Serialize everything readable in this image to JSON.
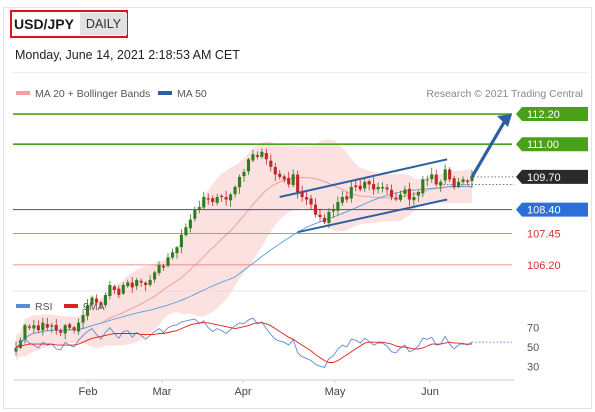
{
  "header": {
    "pair": "USD/JPY",
    "period": "DAILY"
  },
  "timestamp": "Monday, June 14, 2021 2:18:53 AM CET",
  "legend": {
    "bollinger": "MA 20 + Bollinger Bands",
    "ma50": "MA 50",
    "rsi": "RSI",
    "rsi_ma": "9MA"
  },
  "copyright": "Research © 2021 Trading Central",
  "colors": {
    "up_candle": "#2e7d1e",
    "down_candle": "#c0262a",
    "bands": "#f9c9c9",
    "ma20": "#f0a0a0",
    "ma50": "#5aa0d8",
    "resistance": "#49a019",
    "support_blue": "#2d6fd6",
    "support_red": "#f07070",
    "current_price": "#2a2a2a",
    "trend_arrow": "#2e5fa3",
    "rsi": "#5b8bd9",
    "rsi_ma": "#e02020"
  },
  "chart_data": [
    {
      "type": "candlestick",
      "title": "USD/JPY daily",
      "x_ticks": [
        "Feb",
        "Mar",
        "Apr",
        "May",
        "Jun"
      ],
      "y_range": [
        105.2,
        112.6
      ],
      "levels": [
        {
          "value": 112.2,
          "label": "112.20",
          "kind": "resistance"
        },
        {
          "value": 111.0,
          "label": "111.00",
          "kind": "resistance"
        },
        {
          "value": 109.7,
          "label": "109.70",
          "kind": "current"
        },
        {
          "value": 108.4,
          "label": "108.40",
          "kind": "support"
        },
        {
          "value": 107.45,
          "label": "107.45",
          "kind": "support_minor"
        },
        {
          "value": 106.2,
          "label": "106.20",
          "kind": "support_minor"
        }
      ],
      "closes": [
        102.9,
        103.2,
        103.8,
        103.7,
        103.8,
        103.6,
        103.9,
        103.7,
        103.8,
        103.6,
        103.5,
        103.8,
        103.7,
        103.6,
        103.9,
        104.2,
        104.6,
        104.9,
        104.7,
        104.6,
        105.0,
        105.4,
        105.2,
        105.0,
        105.4,
        105.5,
        105.3,
        105.6,
        105.5,
        105.4,
        105.6,
        105.9,
        106.2,
        106.1,
        106.5,
        106.7,
        106.9,
        107.4,
        107.7,
        108.0,
        108.4,
        108.5,
        108.9,
        108.8,
        108.7,
        108.9,
        108.9,
        108.8,
        109.0,
        109.3,
        109.7,
        109.9,
        110.4,
        110.6,
        110.5,
        110.7,
        110.4,
        110.1,
        109.8,
        109.7,
        109.6,
        109.4,
        109.8,
        109.1,
        108.9,
        108.8,
        108.6,
        108.2,
        108.1,
        107.9,
        108.3,
        108.4,
        108.7,
        108.9,
        108.8,
        109.3,
        109.3,
        109.2,
        109.5,
        109.4,
        109.2,
        109.3,
        109.3,
        109.2,
        108.9,
        108.8,
        109.0,
        109.2,
        108.8,
        108.9,
        109.1,
        109.6,
        109.6,
        109.8,
        109.4,
        109.5,
        110.0,
        109.6,
        109.3,
        109.5,
        109.6,
        109.5,
        109.7
      ],
      "channel": {
        "upper": [
          108.9,
          110.4
        ],
        "lower": [
          107.5,
          108.8
        ]
      }
    },
    {
      "type": "line",
      "title": "RSI",
      "y_ticks": [
        70,
        50,
        30
      ],
      "series": [
        {
          "name": "RSI",
          "values": [
            47,
            55,
            58,
            54,
            52,
            49,
            55,
            52,
            53,
            48,
            47,
            55,
            52,
            50,
            57,
            62,
            66,
            69,
            63,
            58,
            65,
            70,
            64,
            59,
            66,
            67,
            60,
            65,
            62,
            58,
            62,
            66,
            69,
            65,
            70,
            72,
            73,
            76,
            77,
            78,
            79,
            74,
            77,
            70,
            66,
            69,
            67,
            64,
            68,
            72,
            75,
            74,
            78,
            80,
            74,
            76,
            69,
            63,
            58,
            56,
            55,
            52,
            58,
            44,
            40,
            38,
            36,
            32,
            30,
            29,
            38,
            41,
            48,
            52,
            50,
            58,
            57,
            54,
            59,
            56,
            52,
            54,
            54,
            51,
            45,
            44,
            49,
            52,
            45,
            47,
            51,
            59,
            58,
            60,
            52,
            53,
            61,
            53,
            48,
            52,
            54,
            52,
            55
          ]
        },
        {
          "name": "9MA",
          "values": [
            50,
            51,
            52,
            53,
            53,
            53,
            53,
            53,
            53,
            52,
            52,
            52,
            52,
            52,
            53,
            55,
            57,
            59,
            60,
            61,
            62,
            63,
            64,
            64,
            64,
            64,
            64,
            64,
            63,
            63,
            63,
            63,
            64,
            64,
            65,
            66,
            67,
            69,
            71,
            73,
            74,
            75,
            75,
            75,
            74,
            73,
            72,
            71,
            70,
            69,
            70,
            71,
            72,
            74,
            75,
            75,
            74,
            72,
            69,
            66,
            63,
            60,
            58,
            55,
            52,
            49,
            46,
            42,
            39,
            36,
            34,
            34,
            36,
            39,
            42,
            45,
            48,
            51,
            54,
            55,
            55,
            55,
            55,
            54,
            53,
            51,
            50,
            50,
            49,
            48,
            48,
            49,
            51,
            53,
            53,
            53,
            54,
            55,
            54,
            54,
            53,
            53,
            53
          ]
        }
      ]
    }
  ]
}
